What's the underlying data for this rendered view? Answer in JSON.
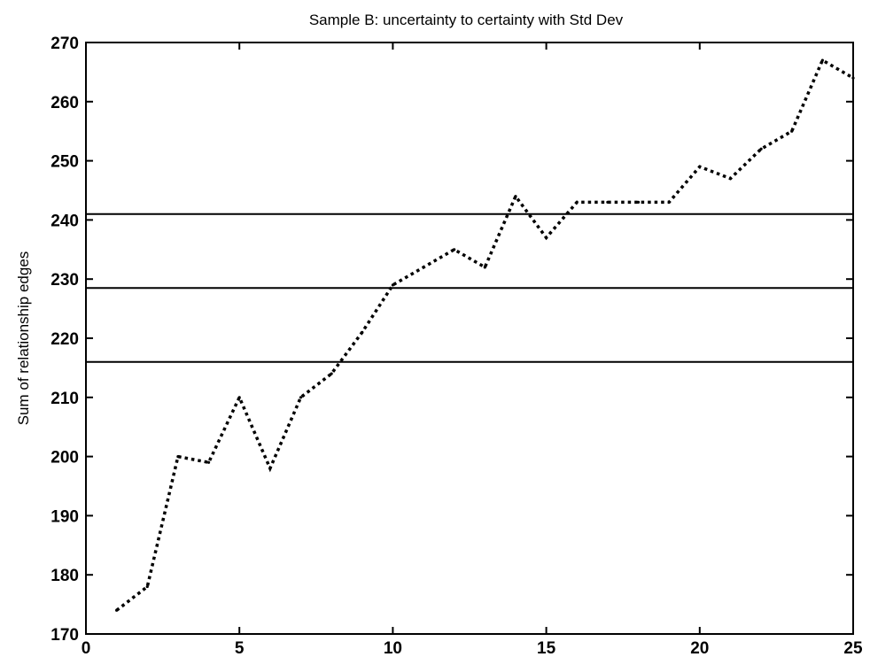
{
  "chart_data": {
    "type": "line",
    "title": "Sample B: uncertainty to certainty with Std Dev",
    "xlabel": "",
    "ylabel": "Sum of relationship edges",
    "xlim": [
      0,
      25
    ],
    "ylim": [
      170,
      270
    ],
    "xticks": [
      "0",
      "5",
      "10",
      "15",
      "20",
      "25"
    ],
    "yticks": [
      "170",
      "180",
      "190",
      "200",
      "210",
      "220",
      "230",
      "240",
      "250",
      "260",
      "270"
    ],
    "grid": false,
    "series": [
      {
        "style": "dotted",
        "color": "#000000",
        "x": [
          1,
          2,
          3,
          4,
          5,
          6,
          7,
          8,
          9,
          10,
          11,
          12,
          13,
          14,
          15,
          16,
          17,
          18,
          19,
          20,
          21,
          22,
          23,
          24,
          25
        ],
        "y": [
          174,
          178,
          200,
          199,
          210,
          198,
          210,
          214,
          221,
          229,
          232,
          235,
          232,
          244,
          237,
          243,
          243,
          243,
          243,
          249,
          247,
          252,
          255,
          267,
          264
        ]
      }
    ],
    "hlines": [
      {
        "y": 241,
        "style": "solid",
        "color": "#000000"
      },
      {
        "y": 228.5,
        "style": "solid",
        "color": "#000000"
      },
      {
        "y": 216,
        "style": "solid",
        "color": "#000000"
      }
    ]
  }
}
